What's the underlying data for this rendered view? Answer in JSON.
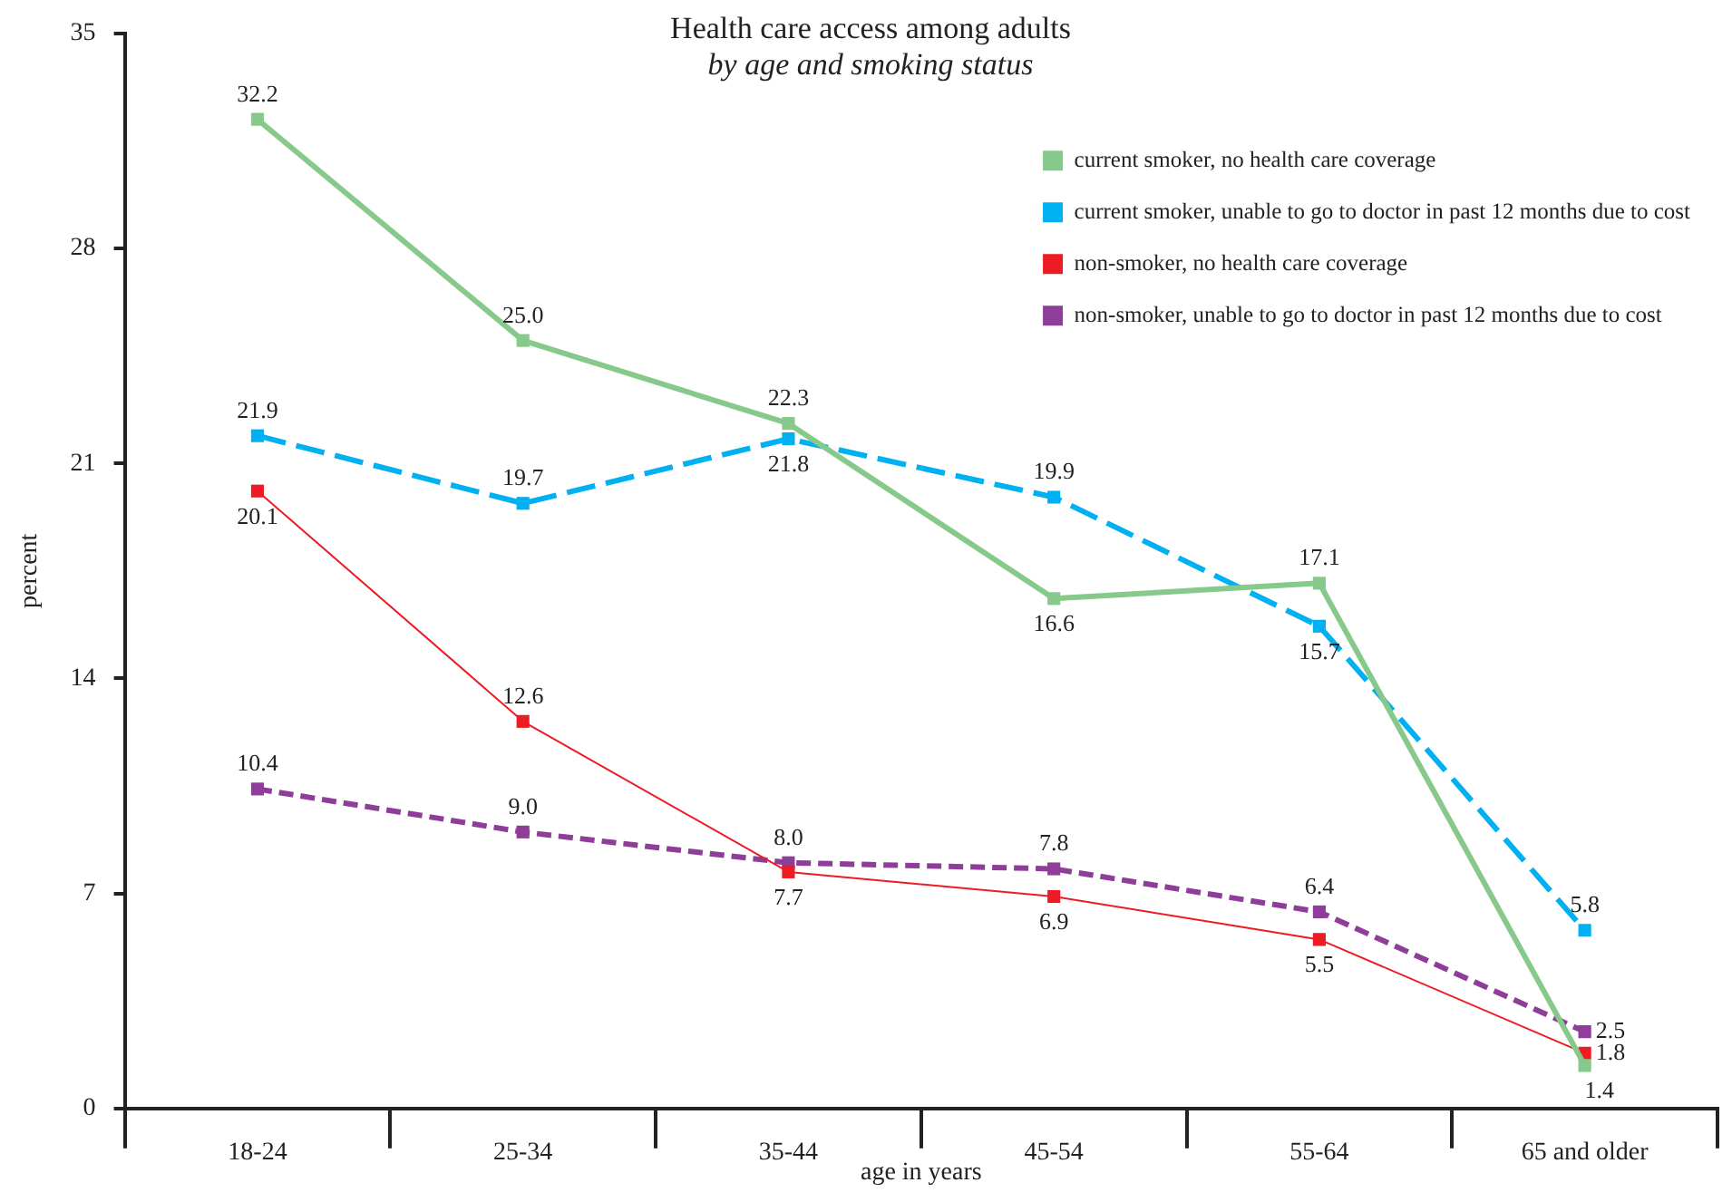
{
  "chart_data": {
    "type": "line",
    "title": "Health care access among adults",
    "subtitle": "by age and smoking status",
    "xlabel": "age in years",
    "ylabel": "percent",
    "categories": [
      "18-24",
      "25-34",
      "35-44",
      "45-54",
      "55-64",
      "65 and older"
    ],
    "series": [
      {
        "name": "current smoker, no health care coverage",
        "color": "#86c98a",
        "line_style": "solid",
        "values": [
          32.2,
          25.0,
          22.3,
          16.6,
          17.1,
          1.4
        ],
        "value_labels": [
          "32.2",
          "25.0",
          "22.3",
          "16.6",
          "17.1",
          "1.4"
        ]
      },
      {
        "name": "current smoker, unable to go to doctor in past 12 months due to cost",
        "color": "#00b0f0",
        "line_style": "dashed",
        "values": [
          21.9,
          19.7,
          21.8,
          19.9,
          15.7,
          5.8
        ],
        "value_labels": [
          "21.9",
          "19.7",
          "21.8",
          "19.9",
          "15.7",
          "5.8"
        ]
      },
      {
        "name": "non-smoker, no health care coverage",
        "color": "#ed1c24",
        "line_style": "solid",
        "values": [
          20.1,
          12.6,
          7.7,
          6.9,
          5.5,
          1.8
        ],
        "value_labels": [
          "20.1",
          "12.6",
          "7.7",
          "6.9",
          "5.5",
          "1.8"
        ]
      },
      {
        "name": "non-smoker, unable to go to doctor in past 12 months due to cost",
        "color": "#8e3e98",
        "line_style": "dashed",
        "values": [
          10.4,
          9.0,
          8.0,
          7.8,
          6.4,
          2.5
        ],
        "value_labels": [
          "10.4",
          "9.0",
          "8.0",
          "7.8",
          "6.4",
          "2.5"
        ]
      }
    ],
    "ylim": [
      0,
      35
    ],
    "yticks": [
      0,
      7,
      14,
      21,
      28,
      35
    ],
    "grid": false,
    "legend": "top right",
    "marker": "square"
  }
}
